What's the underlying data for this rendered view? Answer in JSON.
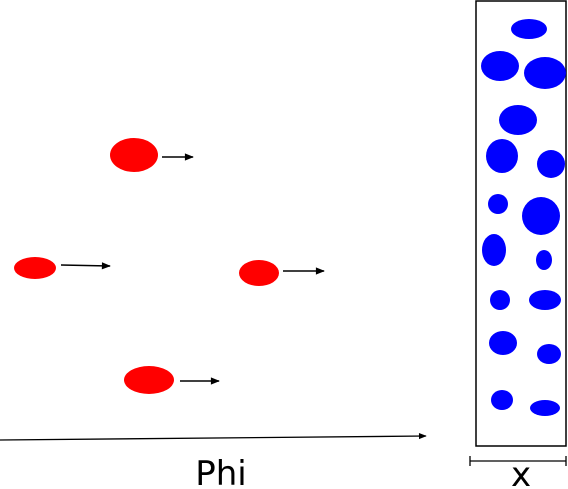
{
  "labels": {
    "axis": "Phi",
    "width": "x"
  },
  "colors": {
    "particle": "#ff0000",
    "target": "#0000ff",
    "line": "#000000"
  },
  "particles": {
    "count": 4
  },
  "target_blobs": {
    "count": 16
  }
}
